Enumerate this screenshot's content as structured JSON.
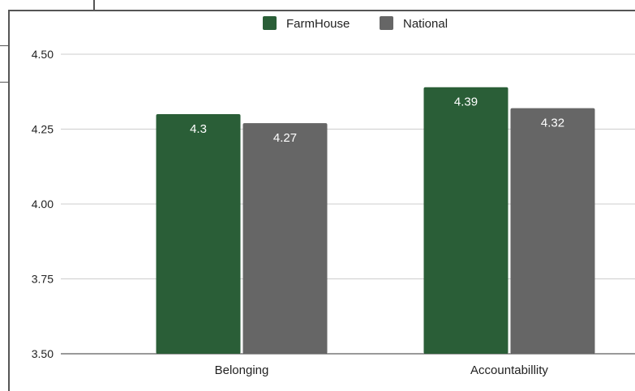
{
  "chart_data": {
    "type": "bar",
    "categories": [
      "Belonging",
      "Accountabillity"
    ],
    "series": [
      {
        "name": "FarmHouse",
        "values": [
          4.3,
          4.39
        ],
        "labels": [
          "4.3",
          "4.39"
        ],
        "color": "#2a5e37"
      },
      {
        "name": "National",
        "values": [
          4.27,
          4.32
        ],
        "labels": [
          "4.27",
          "4.32"
        ],
        "color": "#666666"
      }
    ],
    "yticks": [
      "4.50",
      "4.25",
      "4.00",
      "3.75",
      "3.50"
    ],
    "ylim": [
      3.5,
      4.5
    ],
    "title": "",
    "xlabel": "",
    "ylabel": "",
    "grid": true,
    "legend": "top"
  }
}
